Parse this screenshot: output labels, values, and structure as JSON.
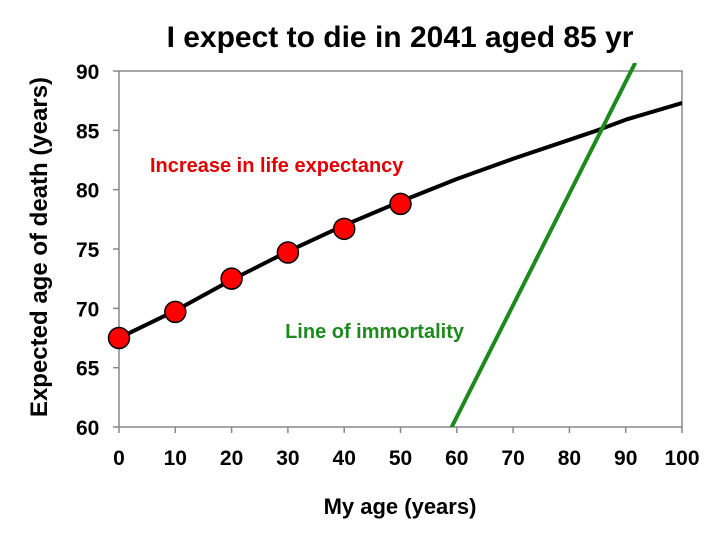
{
  "chart_data": {
    "type": "line",
    "title": "I expect to die in 2041 aged 85 yr",
    "xlabel": "My age (years)",
    "ylabel": "Expected age of death (years)",
    "xlim": [
      0,
      100
    ],
    "ylim": [
      60,
      90
    ],
    "xticks": [
      "0",
      "10",
      "20",
      "30",
      "40",
      "50",
      "60",
      "70",
      "80",
      "90",
      "100"
    ],
    "yticks": [
      "60",
      "65",
      "70",
      "75",
      "80",
      "85",
      "90"
    ],
    "grid": false,
    "series": [
      {
        "name": "Expected age of death",
        "color": "#000000",
        "x": [
          0,
          10,
          20,
          30,
          40,
          50,
          60,
          70,
          80,
          85,
          90,
          100
        ],
        "y": [
          67.5,
          69.8,
          72.4,
          74.8,
          77.0,
          79.0,
          80.9,
          82.6,
          84.2,
          85.0,
          85.9,
          87.3
        ]
      },
      {
        "name": "Line of immortality",
        "color": "#1e8a1e",
        "x": [
          59.1,
          91.6
        ],
        "y": [
          60,
          90.6
        ]
      }
    ],
    "points": {
      "name": "Increase in life expectancy",
      "color": "#ff0000",
      "x": [
        0,
        10,
        20,
        30,
        40,
        50
      ],
      "y": [
        67.5,
        69.7,
        72.5,
        74.7,
        76.7,
        78.8
      ]
    },
    "annotations": [
      {
        "text": "Increase in life expectancy",
        "color": "#e00000",
        "x": 5.5,
        "y": 81.5
      },
      {
        "text": "Line of immortality",
        "color": "#1e8a1e",
        "x": 29.5,
        "y": 67.5
      }
    ]
  }
}
